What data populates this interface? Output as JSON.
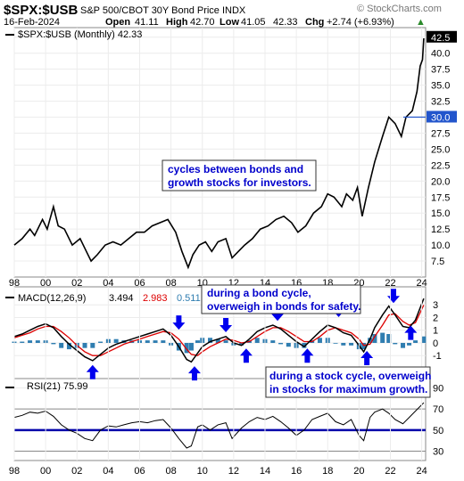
{
  "header": {
    "symbol": "$SPX:$USB",
    "description": "S&P 500/CBOT 30Y Bond Price INDX",
    "date": "16-Feb-2024",
    "open_label": "Open",
    "open": "41.11",
    "high_label": "High",
    "high": "42.70",
    "low_label": "Low",
    "low": "41.05",
    "close": "42.33",
    "chg_label": "Chg",
    "chg": "+2.74 (+6.93%)",
    "brand": "© StockCharts.com"
  },
  "colors": {
    "price_line": "#000000",
    "macd_line": "#000000",
    "signal_line": "#dd0000",
    "histogram": "#2f7db0",
    "arrow": "#0000ee",
    "rsi_line": "#000000",
    "rsi_band": "#0000aa",
    "annotation_text": "#0000cc"
  },
  "chart_data": {
    "type": "line",
    "x_tick_labels": [
      "98",
      "00",
      "02",
      "04",
      "06",
      "08",
      "10",
      "12",
      "14",
      "16",
      "18",
      "20",
      "22",
      "24"
    ],
    "price": {
      "legend": "$SPX:$USB (Monthly) 42.33",
      "y_ticks": [
        "7.5",
        "10.0",
        "12.5",
        "15.0",
        "17.5",
        "20.0",
        "22.5",
        "25.0",
        "27.5",
        "30.0",
        "32.5",
        "35.0",
        "37.5",
        "40.0",
        "42.5"
      ],
      "ylim": [
        5,
        44
      ],
      "current_tag": "42.5",
      "marker_tag": "30.0",
      "points": [
        [
          1998,
          10
        ],
        [
          1998.5,
          11
        ],
        [
          1999,
          12.5
        ],
        [
          1999.3,
          11.5
        ],
        [
          1999.8,
          14
        ],
        [
          2000.1,
          12.5
        ],
        [
          2000.5,
          16
        ],
        [
          2000.8,
          13
        ],
        [
          2001.2,
          12.5
        ],
        [
          2001.7,
          10
        ],
        [
          2002.2,
          11
        ],
        [
          2002.6,
          9
        ],
        [
          2002.9,
          7.5
        ],
        [
          2003.3,
          8.5
        ],
        [
          2003.8,
          10
        ],
        [
          2004.3,
          10.5
        ],
        [
          2004.8,
          10
        ],
        [
          2005.3,
          11
        ],
        [
          2005.8,
          12
        ],
        [
          2006.3,
          12
        ],
        [
          2006.8,
          13
        ],
        [
          2007.3,
          13.5
        ],
        [
          2007.8,
          14
        ],
        [
          2008.3,
          12
        ],
        [
          2008.7,
          9
        ],
        [
          2009.1,
          6.5
        ],
        [
          2009.4,
          8.5
        ],
        [
          2009.8,
          10
        ],
        [
          2010.2,
          10.5
        ],
        [
          2010.6,
          9
        ],
        [
          2011.0,
          10.5
        ],
        [
          2011.5,
          11
        ],
        [
          2011.9,
          8
        ],
        [
          2012.3,
          9
        ],
        [
          2012.7,
          10
        ],
        [
          2013.2,
          11
        ],
        [
          2013.7,
          12.5
        ],
        [
          2014.2,
          13
        ],
        [
          2014.7,
          14
        ],
        [
          2015.2,
          14.5
        ],
        [
          2015.7,
          13.5
        ],
        [
          2016.1,
          12
        ],
        [
          2016.6,
          13
        ],
        [
          2017.1,
          15
        ],
        [
          2017.6,
          16
        ],
        [
          2018.0,
          18
        ],
        [
          2018.4,
          17.5
        ],
        [
          2018.9,
          16
        ],
        [
          2019.2,
          18
        ],
        [
          2019.6,
          17
        ],
        [
          2019.9,
          19
        ],
        [
          2020.2,
          14.5
        ],
        [
          2020.6,
          19
        ],
        [
          2021.0,
          23
        ],
        [
          2021.5,
          27
        ],
        [
          2021.9,
          30
        ],
        [
          2022.3,
          29
        ],
        [
          2022.7,
          27
        ],
        [
          2023.0,
          30
        ],
        [
          2023.4,
          31
        ],
        [
          2023.7,
          34
        ],
        [
          2023.9,
          38
        ],
        [
          2024.05,
          39
        ],
        [
          2024.13,
          42.33
        ]
      ]
    },
    "macd": {
      "label_name": "MACD(12,26,9)",
      "macd_value": "3.494",
      "signal_value": "2.983",
      "hist_value": "0.511",
      "y_ticks": [
        "-1",
        "0",
        "1",
        "2",
        "3"
      ],
      "ylim": [
        -2.6,
        4.0
      ],
      "macd_points": [
        [
          1998,
          0.5
        ],
        [
          1998.5,
          0.7
        ],
        [
          1999,
          1.0
        ],
        [
          1999.5,
          1.3
        ],
        [
          2000,
          1.5
        ],
        [
          2000.5,
          1.2
        ],
        [
          2001,
          0.5
        ],
        [
          2001.5,
          -0.1
        ],
        [
          2002,
          -0.6
        ],
        [
          2002.5,
          -1.1
        ],
        [
          2003,
          -1.4
        ],
        [
          2003.5,
          -0.9
        ],
        [
          2004,
          -0.4
        ],
        [
          2004.5,
          -0.1
        ],
        [
          2005,
          0.1
        ],
        [
          2005.5,
          0.3
        ],
        [
          2006,
          0.5
        ],
        [
          2006.5,
          0.7
        ],
        [
          2007,
          0.9
        ],
        [
          2007.5,
          1.1
        ],
        [
          2008,
          0.6
        ],
        [
          2008.5,
          -0.3
        ],
        [
          2009,
          -1.3
        ],
        [
          2009.3,
          -1.5
        ],
        [
          2009.7,
          -0.8
        ],
        [
          2010,
          -0.3
        ],
        [
          2010.5,
          0.1
        ],
        [
          2011,
          0.3
        ],
        [
          2011.5,
          0.5
        ],
        [
          2012,
          0.0
        ],
        [
          2012.5,
          -0.2
        ],
        [
          2013,
          0.3
        ],
        [
          2013.5,
          0.9
        ],
        [
          2014,
          1.2
        ],
        [
          2014.5,
          1.4
        ],
        [
          2015,
          1.1
        ],
        [
          2015.5,
          0.6
        ],
        [
          2016,
          0.1
        ],
        [
          2016.5,
          -0.3
        ],
        [
          2017,
          0.3
        ],
        [
          2017.5,
          0.9
        ],
        [
          2018,
          1.4
        ],
        [
          2018.5,
          1.2
        ],
        [
          2019,
          0.8
        ],
        [
          2019.5,
          0.6
        ],
        [
          2020,
          -0.2
        ],
        [
          2020.3,
          -0.7
        ],
        [
          2020.7,
          0.3
        ],
        [
          2021,
          1.2
        ],
        [
          2021.5,
          2.2
        ],
        [
          2021.9,
          2.9
        ],
        [
          2022.3,
          2.2
        ],
        [
          2022.8,
          1.3
        ],
        [
          2023.2,
          1.2
        ],
        [
          2023.6,
          1.8
        ],
        [
          2024.13,
          3.494
        ]
      ],
      "signal_points": [
        [
          1998,
          0.4
        ],
        [
          1998.5,
          0.6
        ],
        [
          1999,
          0.8
        ],
        [
          1999.5,
          1.1
        ],
        [
          2000,
          1.3
        ],
        [
          2000.5,
          1.3
        ],
        [
          2001,
          0.9
        ],
        [
          2001.5,
          0.4
        ],
        [
          2002,
          -0.2
        ],
        [
          2002.5,
          -0.7
        ],
        [
          2003,
          -1.0
        ],
        [
          2003.5,
          -1.0
        ],
        [
          2004,
          -0.7
        ],
        [
          2004.5,
          -0.4
        ],
        [
          2005,
          -0.1
        ],
        [
          2005.5,
          0.1
        ],
        [
          2006,
          0.3
        ],
        [
          2006.5,
          0.5
        ],
        [
          2007,
          0.7
        ],
        [
          2007.5,
          0.9
        ],
        [
          2008,
          0.8
        ],
        [
          2008.5,
          0.3
        ],
        [
          2009,
          -0.5
        ],
        [
          2009.3,
          -0.9
        ],
        [
          2009.7,
          -1.0
        ],
        [
          2010,
          -0.7
        ],
        [
          2010.5,
          -0.3
        ],
        [
          2011,
          0.0
        ],
        [
          2011.5,
          0.3
        ],
        [
          2012,
          0.2
        ],
        [
          2012.5,
          0.0
        ],
        [
          2013,
          0.1
        ],
        [
          2013.5,
          0.5
        ],
        [
          2014,
          0.9
        ],
        [
          2014.5,
          1.2
        ],
        [
          2015,
          1.2
        ],
        [
          2015.5,
          0.9
        ],
        [
          2016,
          0.5
        ],
        [
          2016.5,
          0.1
        ],
        [
          2017,
          0.1
        ],
        [
          2017.5,
          0.5
        ],
        [
          2018,
          1.0
        ],
        [
          2018.5,
          1.2
        ],
        [
          2019,
          1.0
        ],
        [
          2019.5,
          0.8
        ],
        [
          2020,
          0.3
        ],
        [
          2020.3,
          -0.2
        ],
        [
          2020.7,
          -0.1
        ],
        [
          2021,
          0.5
        ],
        [
          2021.5,
          1.4
        ],
        [
          2021.9,
          2.2
        ],
        [
          2022.3,
          2.3
        ],
        [
          2022.8,
          1.7
        ],
        [
          2023.2,
          1.4
        ],
        [
          2023.6,
          1.6
        ],
        [
          2024.13,
          2.983
        ]
      ],
      "hist_points": [
        [
          1998,
          0.1
        ],
        [
          1998.5,
          0.1
        ],
        [
          1999,
          0.2
        ],
        [
          1999.5,
          0.2
        ],
        [
          2000,
          0.2
        ],
        [
          2000.5,
          -0.1
        ],
        [
          2001,
          -0.4
        ],
        [
          2001.5,
          -0.5
        ],
        [
          2002,
          -0.4
        ],
        [
          2002.5,
          -0.4
        ],
        [
          2003,
          -0.4
        ],
        [
          2003.5,
          0.1
        ],
        [
          2004,
          0.3
        ],
        [
          2004.5,
          0.3
        ],
        [
          2005,
          0.2
        ],
        [
          2005.5,
          0.2
        ],
        [
          2006,
          0.2
        ],
        [
          2006.5,
          0.2
        ],
        [
          2007,
          0.2
        ],
        [
          2007.5,
          0.2
        ],
        [
          2008,
          -0.2
        ],
        [
          2008.5,
          -0.6
        ],
        [
          2009,
          -0.8
        ],
        [
          2009.3,
          -0.6
        ],
        [
          2009.7,
          0.2
        ],
        [
          2010,
          0.4
        ],
        [
          2010.5,
          0.4
        ],
        [
          2011,
          0.3
        ],
        [
          2011.5,
          0.2
        ],
        [
          2012,
          -0.2
        ],
        [
          2012.5,
          -0.2
        ],
        [
          2013,
          0.2
        ],
        [
          2013.5,
          0.4
        ],
        [
          2014,
          0.3
        ],
        [
          2014.5,
          0.2
        ],
        [
          2015,
          -0.1
        ],
        [
          2015.5,
          -0.3
        ],
        [
          2016,
          -0.4
        ],
        [
          2016.5,
          -0.4
        ],
        [
          2017,
          0.2
        ],
        [
          2017.5,
          0.4
        ],
        [
          2018,
          0.4
        ],
        [
          2018.5,
          0.0
        ],
        [
          2019,
          -0.2
        ],
        [
          2019.5,
          -0.2
        ],
        [
          2020,
          -0.5
        ],
        [
          2020.3,
          -0.5
        ],
        [
          2020.7,
          0.4
        ],
        [
          2021,
          0.7
        ],
        [
          2021.5,
          0.8
        ],
        [
          2021.9,
          0.7
        ],
        [
          2022.3,
          -0.1
        ],
        [
          2022.8,
          -0.4
        ],
        [
          2023.2,
          -0.2
        ],
        [
          2023.6,
          0.2
        ],
        [
          2024.13,
          0.511
        ]
      ],
      "arrows": [
        {
          "year": 2003.0,
          "value": -2.3,
          "dir": "up"
        },
        {
          "year": 2008.5,
          "value": 1.6,
          "dir": "down"
        },
        {
          "year": 2009.5,
          "value": -2.4,
          "dir": "up"
        },
        {
          "year": 2011.5,
          "value": 1.4,
          "dir": "down"
        },
        {
          "year": 2012.8,
          "value": -1.0,
          "dir": "up"
        },
        {
          "year": 2014.8,
          "value": 2.3,
          "dir": "down"
        },
        {
          "year": 2016.7,
          "value": -1.0,
          "dir": "up"
        },
        {
          "year": 2018.7,
          "value": 2.6,
          "dir": "down"
        },
        {
          "year": 2020.5,
          "value": -1.2,
          "dir": "up"
        },
        {
          "year": 2022.2,
          "value": 3.7,
          "dir": "down"
        },
        {
          "year": 2023.3,
          "value": 0.8,
          "dir": "up"
        }
      ]
    },
    "rsi": {
      "label": "RSI(21) 75.99",
      "y_ticks": [
        "30",
        "50",
        "70",
        "90"
      ],
      "ylim": [
        22,
        98
      ],
      "band_level": 50,
      "current_tag": "76",
      "points": [
        [
          1998,
          62
        ],
        [
          1998.5,
          64
        ],
        [
          1999,
          67
        ],
        [
          1999.5,
          66
        ],
        [
          2000,
          68
        ],
        [
          2000.5,
          63
        ],
        [
          2001,
          55
        ],
        [
          2001.5,
          50
        ],
        [
          2002,
          47
        ],
        [
          2002.5,
          42
        ],
        [
          2003,
          40
        ],
        [
          2003.5,
          50
        ],
        [
          2004,
          54
        ],
        [
          2004.5,
          53
        ],
        [
          2005,
          55
        ],
        [
          2005.5,
          57
        ],
        [
          2006,
          58
        ],
        [
          2006.5,
          57
        ],
        [
          2007,
          59
        ],
        [
          2007.5,
          60
        ],
        [
          2008,
          52
        ],
        [
          2008.5,
          42
        ],
        [
          2009,
          33
        ],
        [
          2009.3,
          35
        ],
        [
          2009.7,
          53
        ],
        [
          2010,
          55
        ],
        [
          2010.5,
          50
        ],
        [
          2011,
          55
        ],
        [
          2011.5,
          57
        ],
        [
          2011.9,
          42
        ],
        [
          2012.5,
          52
        ],
        [
          2013,
          58
        ],
        [
          2013.5,
          62
        ],
        [
          2014,
          60
        ],
        [
          2014.5,
          63
        ],
        [
          2015,
          58
        ],
        [
          2015.5,
          52
        ],
        [
          2016,
          45
        ],
        [
          2016.5,
          50
        ],
        [
          2017,
          60
        ],
        [
          2017.5,
          63
        ],
        [
          2018,
          66
        ],
        [
          2018.5,
          58
        ],
        [
          2019,
          55
        ],
        [
          2019.5,
          60
        ],
        [
          2020,
          45
        ],
        [
          2020.3,
          40
        ],
        [
          2020.7,
          62
        ],
        [
          2021,
          67
        ],
        [
          2021.5,
          70
        ],
        [
          2021.9,
          66
        ],
        [
          2022.3,
          60
        ],
        [
          2022.8,
          56
        ],
        [
          2023.2,
          62
        ],
        [
          2023.6,
          68
        ],
        [
          2024.13,
          75.99
        ]
      ]
    },
    "annotations": {
      "cycles": [
        "cycles between bonds and",
        "growth stocks for investors."
      ],
      "bond_cycle": [
        "during a bond cycle,",
        "overweigh in bonds for safety."
      ],
      "stock_cycle": [
        "during a stock cycle, overweigh",
        "in stocks for maximum growth."
      ]
    }
  }
}
